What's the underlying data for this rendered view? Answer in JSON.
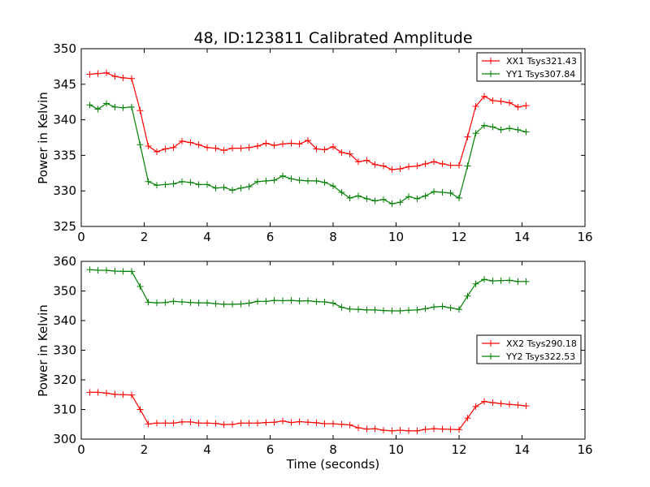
{
  "chart_data": [
    {
      "type": "line",
      "title": "48, ID:123811 Calibrated Amplitude",
      "xlabel": "",
      "ylabel": "Power in Kelvin",
      "xlim": [
        0,
        16
      ],
      "ylim": [
        325,
        350
      ],
      "xticks": [
        0,
        2,
        4,
        6,
        8,
        10,
        12,
        14,
        16
      ],
      "yticks": [
        325,
        330,
        335,
        340,
        345,
        350
      ],
      "grid": false,
      "legend": "top-right",
      "x": [
        0.27,
        0.53,
        0.8,
        1.07,
        1.33,
        1.6,
        1.87,
        2.13,
        2.4,
        2.67,
        2.93,
        3.2,
        3.47,
        3.73,
        4.0,
        4.27,
        4.53,
        4.8,
        5.07,
        5.33,
        5.6,
        5.87,
        6.13,
        6.4,
        6.67,
        6.93,
        7.2,
        7.47,
        7.73,
        8.0,
        8.27,
        8.53,
        8.8,
        9.07,
        9.33,
        9.6,
        9.87,
        10.13,
        10.4,
        10.67,
        10.93,
        11.2,
        11.47,
        11.73,
        12.0,
        12.27,
        12.53,
        12.8,
        13.07,
        13.33,
        13.6,
        13.87,
        14.13
      ],
      "series": [
        {
          "name": "XX1 Tsys321.43",
          "color": "#ff0000",
          "values": [
            346.4,
            346.5,
            346.6,
            346.1,
            345.9,
            345.8,
            341.3,
            336.3,
            335.5,
            335.9,
            336.1,
            337.0,
            336.8,
            336.5,
            336.1,
            336.0,
            335.7,
            336.0,
            336.0,
            336.1,
            336.3,
            336.7,
            336.4,
            336.6,
            336.7,
            336.6,
            337.1,
            335.9,
            335.8,
            336.2,
            335.4,
            335.2,
            334.1,
            334.3,
            333.7,
            333.5,
            333.0,
            333.1,
            333.4,
            333.5,
            333.8,
            334.1,
            333.8,
            333.6,
            333.6,
            337.6,
            341.9,
            343.3,
            342.7,
            342.6,
            342.4,
            341.8,
            342.0
          ]
        },
        {
          "name": "YY1 Tsys307.84",
          "color": "#008000",
          "values": [
            342.1,
            341.5,
            342.3,
            341.8,
            341.7,
            341.8,
            336.5,
            331.3,
            330.8,
            330.9,
            331.0,
            331.3,
            331.2,
            330.9,
            330.9,
            330.4,
            330.5,
            330.1,
            330.4,
            330.6,
            331.3,
            331.4,
            331.5,
            332.1,
            331.7,
            331.5,
            331.4,
            331.4,
            331.2,
            330.7,
            329.8,
            329.0,
            329.3,
            328.9,
            328.6,
            328.8,
            328.2,
            328.4,
            329.2,
            328.9,
            329.3,
            329.9,
            329.8,
            329.7,
            329.0,
            333.5,
            338.1,
            339.2,
            339.0,
            338.6,
            338.8,
            338.6,
            338.3
          ]
        }
      ]
    },
    {
      "type": "line",
      "title": "",
      "xlabel": "Time (seconds)",
      "ylabel": "Power in Kelvin",
      "xlim": [
        0,
        16
      ],
      "ylim": [
        300,
        360
      ],
      "xticks": [
        0,
        2,
        4,
        6,
        8,
        10,
        12,
        14,
        16
      ],
      "yticks": [
        300,
        310,
        320,
        330,
        340,
        350,
        360
      ],
      "grid": false,
      "legend": "center-right",
      "x": [
        0.27,
        0.53,
        0.8,
        1.07,
        1.33,
        1.6,
        1.87,
        2.13,
        2.4,
        2.67,
        2.93,
        3.2,
        3.47,
        3.73,
        4.0,
        4.27,
        4.53,
        4.8,
        5.07,
        5.33,
        5.6,
        5.87,
        6.13,
        6.4,
        6.67,
        6.93,
        7.2,
        7.47,
        7.73,
        8.0,
        8.27,
        8.53,
        8.8,
        9.07,
        9.33,
        9.6,
        9.87,
        10.13,
        10.4,
        10.67,
        10.93,
        11.2,
        11.47,
        11.73,
        12.0,
        12.27,
        12.53,
        12.8,
        13.07,
        13.33,
        13.6,
        13.87,
        14.13
      ],
      "series": [
        {
          "name": "XX2 Tsys290.18",
          "color": "#ff0000",
          "values": [
            315.8,
            315.8,
            315.5,
            315.1,
            315.0,
            314.9,
            310.0,
            305.1,
            305.4,
            305.4,
            305.4,
            305.8,
            305.8,
            305.4,
            305.4,
            305.3,
            304.9,
            305.0,
            305.4,
            305.4,
            305.4,
            305.6,
            305.7,
            306.1,
            305.6,
            305.9,
            305.7,
            305.5,
            305.2,
            305.2,
            305.0,
            304.8,
            303.8,
            303.4,
            303.5,
            303.0,
            302.8,
            303.0,
            302.8,
            302.8,
            303.3,
            303.5,
            303.4,
            303.3,
            303.2,
            307.1,
            311.0,
            312.7,
            312.3,
            312.0,
            311.7,
            311.5,
            311.2
          ]
        },
        {
          "name": "YY2 Tsys322.53",
          "color": "#008000",
          "values": [
            357.2,
            357.0,
            357.0,
            356.7,
            356.6,
            356.6,
            351.5,
            346.2,
            346.0,
            346.1,
            346.5,
            346.3,
            346.1,
            346.0,
            346.0,
            345.7,
            345.5,
            345.5,
            345.6,
            345.9,
            346.5,
            346.5,
            346.8,
            346.7,
            346.8,
            346.6,
            346.7,
            346.4,
            346.3,
            345.9,
            344.5,
            343.9,
            343.8,
            343.6,
            343.6,
            343.4,
            343.3,
            343.3,
            343.5,
            343.6,
            344.0,
            344.6,
            344.8,
            344.3,
            343.8,
            348.3,
            352.4,
            353.9,
            353.4,
            353.5,
            353.6,
            353.2,
            353.2
          ]
        }
      ]
    }
  ]
}
